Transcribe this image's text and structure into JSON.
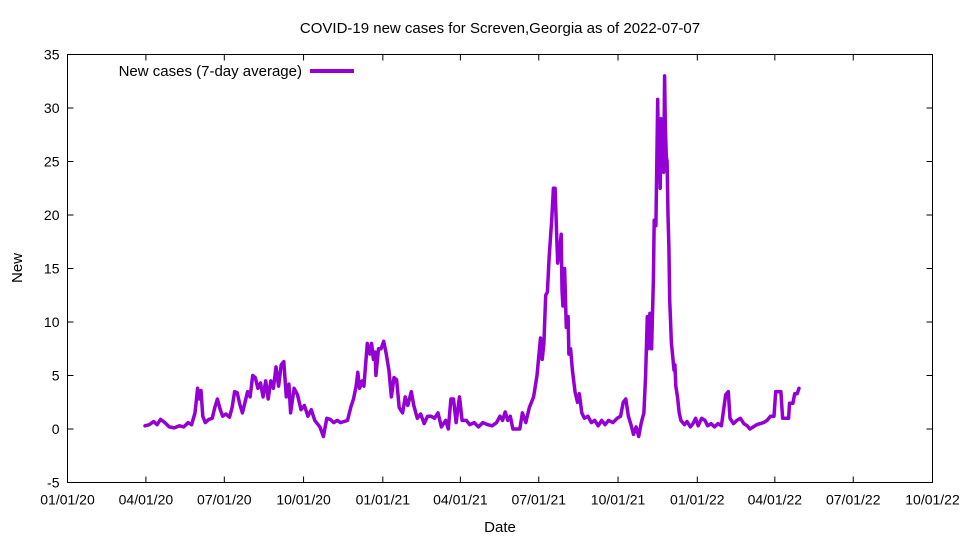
{
  "chart_data": {
    "type": "line",
    "title": "COVID-19 new cases for Screven,Georgia as of 2022-07-07",
    "xlabel": "Date",
    "ylabel": "New",
    "xlim": [
      "2020-01-01",
      "2022-10-01"
    ],
    "ylim": [
      -5,
      35
    ],
    "x_ticks": [
      "01/01/20",
      "04/01/20",
      "07/01/20",
      "10/01/20",
      "01/01/21",
      "04/01/21",
      "07/01/21",
      "10/01/21",
      "01/01/22",
      "04/01/22",
      "07/01/22",
      "10/01/22"
    ],
    "x_tick_dates": [
      "2020-01-01",
      "2020-04-01",
      "2020-07-01",
      "2020-10-01",
      "2021-01-01",
      "2021-04-01",
      "2021-07-01",
      "2021-10-01",
      "2022-01-01",
      "2022-04-01",
      "2022-07-01",
      "2022-10-01"
    ],
    "y_ticks": [
      "-5",
      "0",
      "5",
      "10",
      "15",
      "20",
      "25",
      "30",
      "35"
    ],
    "y_tick_values": [
      -5,
      0,
      5,
      10,
      15,
      20,
      25,
      30,
      35
    ],
    "grid": false,
    "legend_position": "top-left",
    "series": [
      {
        "name": "New cases (7-day average)",
        "color": "#9400d3",
        "points": [
          [
            "2020-03-31",
            0.3
          ],
          [
            "2020-04-05",
            0.4
          ],
          [
            "2020-04-10",
            0.7
          ],
          [
            "2020-04-14",
            0.4
          ],
          [
            "2020-04-18",
            0.9
          ],
          [
            "2020-04-23",
            0.6
          ],
          [
            "2020-04-28",
            0.2
          ],
          [
            "2020-05-04",
            0.1
          ],
          [
            "2020-05-10",
            0.3
          ],
          [
            "2020-05-15",
            0.2
          ],
          [
            "2020-05-20",
            0.6
          ],
          [
            "2020-05-24",
            0.4
          ],
          [
            "2020-05-28",
            1.5
          ],
          [
            "2020-05-31",
            3.8
          ],
          [
            "2020-06-02",
            2.8
          ],
          [
            "2020-06-04",
            3.6
          ],
          [
            "2020-06-06",
            1.2
          ],
          [
            "2020-06-09",
            0.6
          ],
          [
            "2020-06-13",
            0.9
          ],
          [
            "2020-06-17",
            1.0
          ],
          [
            "2020-06-20",
            2.0
          ],
          [
            "2020-06-23",
            2.8
          ],
          [
            "2020-06-26",
            1.9
          ],
          [
            "2020-06-29",
            1.2
          ],
          [
            "2020-07-03",
            1.4
          ],
          [
            "2020-07-07",
            1.1
          ],
          [
            "2020-07-10",
            2.0
          ],
          [
            "2020-07-13",
            3.5
          ],
          [
            "2020-07-16",
            3.4
          ],
          [
            "2020-07-19",
            2.3
          ],
          [
            "2020-07-22",
            1.5
          ],
          [
            "2020-07-25",
            2.5
          ],
          [
            "2020-07-28",
            3.5
          ],
          [
            "2020-07-31",
            3.0
          ],
          [
            "2020-08-03",
            5.0
          ],
          [
            "2020-08-06",
            4.8
          ],
          [
            "2020-08-09",
            3.8
          ],
          [
            "2020-08-12",
            4.3
          ],
          [
            "2020-08-15",
            3.0
          ],
          [
            "2020-08-18",
            4.5
          ],
          [
            "2020-08-21",
            2.8
          ],
          [
            "2020-08-24",
            4.5
          ],
          [
            "2020-08-27",
            3.8
          ],
          [
            "2020-08-30",
            5.8
          ],
          [
            "2020-09-02",
            4.0
          ],
          [
            "2020-09-05",
            6.0
          ],
          [
            "2020-09-08",
            6.3
          ],
          [
            "2020-09-11",
            3.0
          ],
          [
            "2020-09-14",
            4.2
          ],
          [
            "2020-09-16",
            1.5
          ],
          [
            "2020-09-20",
            3.8
          ],
          [
            "2020-09-24",
            3.2
          ],
          [
            "2020-09-28",
            1.8
          ],
          [
            "2020-10-02",
            2.2
          ],
          [
            "2020-10-06",
            1.2
          ],
          [
            "2020-10-10",
            1.8
          ],
          [
            "2020-10-14",
            0.8
          ],
          [
            "2020-10-20",
            0.2
          ],
          [
            "2020-10-24",
            -0.7
          ],
          [
            "2020-10-28",
            1.0
          ],
          [
            "2020-11-01",
            0.9
          ],
          [
            "2020-11-05",
            0.6
          ],
          [
            "2020-11-09",
            0.8
          ],
          [
            "2020-11-13",
            0.6
          ],
          [
            "2020-11-17",
            0.7
          ],
          [
            "2020-11-21",
            0.8
          ],
          [
            "2020-11-25",
            2.1
          ],
          [
            "2020-11-28",
            2.8
          ],
          [
            "2020-12-01",
            4.0
          ],
          [
            "2020-12-03",
            5.3
          ],
          [
            "2020-12-05",
            3.8
          ],
          [
            "2020-12-08",
            4.5
          ],
          [
            "2020-12-10",
            4.0
          ],
          [
            "2020-12-12",
            6.0
          ],
          [
            "2020-12-14",
            8.0
          ],
          [
            "2020-12-17",
            7.0
          ],
          [
            "2020-12-19",
            8.0
          ],
          [
            "2020-12-21",
            6.5
          ],
          [
            "2020-12-23",
            7.2
          ],
          [
            "2020-12-24",
            5.0
          ],
          [
            "2020-12-27",
            7.5
          ],
          [
            "2020-12-30",
            7.5
          ],
          [
            "2021-01-02",
            8.2
          ],
          [
            "2021-01-05",
            7.0
          ],
          [
            "2021-01-08",
            5.5
          ],
          [
            "2021-01-11",
            3.0
          ],
          [
            "2021-01-14",
            4.8
          ],
          [
            "2021-01-17",
            4.6
          ],
          [
            "2021-01-20",
            2.0
          ],
          [
            "2021-01-24",
            1.5
          ],
          [
            "2021-01-27",
            3.0
          ],
          [
            "2021-01-30",
            2.2
          ],
          [
            "2021-02-03",
            3.5
          ],
          [
            "2021-02-06",
            2.2
          ],
          [
            "2021-02-10",
            1.0
          ],
          [
            "2021-02-14",
            1.4
          ],
          [
            "2021-02-18",
            0.5
          ],
          [
            "2021-02-22",
            1.2
          ],
          [
            "2021-02-26",
            1.2
          ],
          [
            "2021-03-02",
            1.0
          ],
          [
            "2021-03-06",
            1.5
          ],
          [
            "2021-03-10",
            0.2
          ],
          [
            "2021-03-15",
            0.8
          ],
          [
            "2021-03-18",
            0.0
          ],
          [
            "2021-03-21",
            2.8
          ],
          [
            "2021-03-24",
            2.8
          ],
          [
            "2021-03-27",
            0.6
          ],
          [
            "2021-03-31",
            3.0
          ],
          [
            "2021-04-03",
            0.8
          ],
          [
            "2021-04-08",
            0.8
          ],
          [
            "2021-04-12",
            0.4
          ],
          [
            "2021-04-17",
            0.6
          ],
          [
            "2021-04-22",
            0.2
          ],
          [
            "2021-04-27",
            0.6
          ],
          [
            "2021-05-03",
            0.4
          ],
          [
            "2021-05-08",
            0.3
          ],
          [
            "2021-05-13",
            0.6
          ],
          [
            "2021-05-17",
            1.2
          ],
          [
            "2021-05-20",
            0.8
          ],
          [
            "2021-05-23",
            1.6
          ],
          [
            "2021-05-26",
            0.8
          ],
          [
            "2021-05-29",
            1.2
          ],
          [
            "2021-06-01",
            0.0
          ],
          [
            "2021-06-05",
            0.0
          ],
          [
            "2021-06-09",
            0.0
          ],
          [
            "2021-06-12",
            1.5
          ],
          [
            "2021-06-16",
            0.6
          ],
          [
            "2021-06-20",
            2.0
          ],
          [
            "2021-06-25",
            3.0
          ],
          [
            "2021-06-29",
            5.0
          ],
          [
            "2021-07-03",
            8.5
          ],
          [
            "2021-07-05",
            6.5
          ],
          [
            "2021-07-07",
            8.0
          ],
          [
            "2021-07-09",
            12.5
          ],
          [
            "2021-07-11",
            12.8
          ],
          [
            "2021-07-13",
            16.0
          ],
          [
            "2021-07-16",
            19.5
          ],
          [
            "2021-07-18",
            22.5
          ],
          [
            "2021-07-20",
            22.5
          ],
          [
            "2021-07-22",
            17.5
          ],
          [
            "2021-07-23",
            15.5
          ],
          [
            "2021-07-25",
            16.5
          ],
          [
            "2021-07-27",
            18.2
          ],
          [
            "2021-07-28",
            13.0
          ],
          [
            "2021-07-29",
            11.5
          ],
          [
            "2021-07-31",
            15.0
          ],
          [
            "2021-08-02",
            9.5
          ],
          [
            "2021-08-04",
            10.5
          ],
          [
            "2021-08-05",
            7.0
          ],
          [
            "2021-08-07",
            7.5
          ],
          [
            "2021-08-09",
            5.5
          ],
          [
            "2021-08-12",
            3.5
          ],
          [
            "2021-08-15",
            2.5
          ],
          [
            "2021-08-17",
            3.3
          ],
          [
            "2021-08-20",
            1.5
          ],
          [
            "2021-08-23",
            1.0
          ],
          [
            "2021-08-27",
            1.2
          ],
          [
            "2021-08-31",
            0.6
          ],
          [
            "2021-09-04",
            0.8
          ],
          [
            "2021-09-08",
            0.3
          ],
          [
            "2021-09-12",
            0.8
          ],
          [
            "2021-09-16",
            0.4
          ],
          [
            "2021-09-20",
            0.8
          ],
          [
            "2021-09-25",
            0.6
          ],
          [
            "2021-09-30",
            1.0
          ],
          [
            "2021-10-04",
            1.2
          ],
          [
            "2021-10-07",
            2.5
          ],
          [
            "2021-10-10",
            2.8
          ],
          [
            "2021-10-13",
            1.2
          ],
          [
            "2021-10-16",
            0.4
          ],
          [
            "2021-10-19",
            -0.5
          ],
          [
            "2021-10-22",
            0.2
          ],
          [
            "2021-10-25",
            -0.7
          ],
          [
            "2021-10-28",
            0.6
          ],
          [
            "2021-10-31",
            1.5
          ],
          [
            "2021-11-02",
            5.0
          ],
          [
            "2021-11-04",
            10.5
          ],
          [
            "2021-11-05",
            7.5
          ],
          [
            "2021-11-07",
            10.8
          ],
          [
            "2021-11-09",
            7.5
          ],
          [
            "2021-11-11",
            14.0
          ],
          [
            "2021-11-12",
            19.5
          ],
          [
            "2021-11-14",
            19.0
          ],
          [
            "2021-11-16",
            30.8
          ],
          [
            "2021-11-17",
            25.0
          ],
          [
            "2021-11-18",
            28.5
          ],
          [
            "2021-11-19",
            22.5
          ],
          [
            "2021-11-20",
            29.0
          ],
          [
            "2021-11-21",
            24.5
          ],
          [
            "2021-11-22",
            27.5
          ],
          [
            "2021-11-23",
            24.0
          ],
          [
            "2021-11-24",
            33.0
          ],
          [
            "2021-11-25",
            28.0
          ],
          [
            "2021-11-26",
            25.5
          ],
          [
            "2021-11-27",
            25.0
          ],
          [
            "2021-11-28",
            20.0
          ],
          [
            "2021-11-29",
            17.0
          ],
          [
            "2021-11-30",
            12.0
          ],
          [
            "2021-12-01",
            10.0
          ],
          [
            "2021-12-02",
            8.0
          ],
          [
            "2021-12-03",
            7.2
          ],
          [
            "2021-12-05",
            5.5
          ],
          [
            "2021-12-06",
            6.0
          ],
          [
            "2021-12-07",
            4.0
          ],
          [
            "2021-12-09",
            3.0
          ],
          [
            "2021-12-11",
            1.5
          ],
          [
            "2021-12-13",
            0.8
          ],
          [
            "2021-12-17",
            0.4
          ],
          [
            "2021-12-20",
            0.7
          ],
          [
            "2021-12-24",
            0.2
          ],
          [
            "2021-12-27",
            0.5
          ],
          [
            "2021-12-30",
            1.0
          ],
          [
            "2022-01-02",
            0.3
          ],
          [
            "2022-01-06",
            1.0
          ],
          [
            "2022-01-10",
            0.8
          ],
          [
            "2022-01-13",
            0.3
          ],
          [
            "2022-01-17",
            0.5
          ],
          [
            "2022-01-21",
            0.2
          ],
          [
            "2022-01-25",
            0.5
          ],
          [
            "2022-01-29",
            0.3
          ],
          [
            "2022-02-03",
            3.2
          ],
          [
            "2022-02-06",
            3.5
          ],
          [
            "2022-02-08",
            1.0
          ],
          [
            "2022-02-12",
            0.5
          ],
          [
            "2022-02-16",
            0.8
          ],
          [
            "2022-02-20",
            1.0
          ],
          [
            "2022-02-24",
            0.5
          ],
          [
            "2022-02-28",
            0.3
          ],
          [
            "2022-03-03",
            0.0
          ],
          [
            "2022-03-07",
            0.2
          ],
          [
            "2022-03-11",
            0.4
          ],
          [
            "2022-03-15",
            0.5
          ],
          [
            "2022-03-19",
            0.6
          ],
          [
            "2022-03-23",
            0.8
          ],
          [
            "2022-03-27",
            1.2
          ],
          [
            "2022-03-31",
            1.2
          ],
          [
            "2022-04-02",
            3.5
          ],
          [
            "2022-04-05",
            3.5
          ],
          [
            "2022-04-08",
            3.5
          ],
          [
            "2022-04-10",
            1.0
          ],
          [
            "2022-04-14",
            1.0
          ],
          [
            "2022-04-17",
            1.0
          ],
          [
            "2022-04-18",
            2.4
          ],
          [
            "2022-04-22",
            2.4
          ],
          [
            "2022-04-24",
            3.3
          ],
          [
            "2022-04-27",
            3.3
          ],
          [
            "2022-04-29",
            3.8
          ]
        ]
      }
    ]
  }
}
